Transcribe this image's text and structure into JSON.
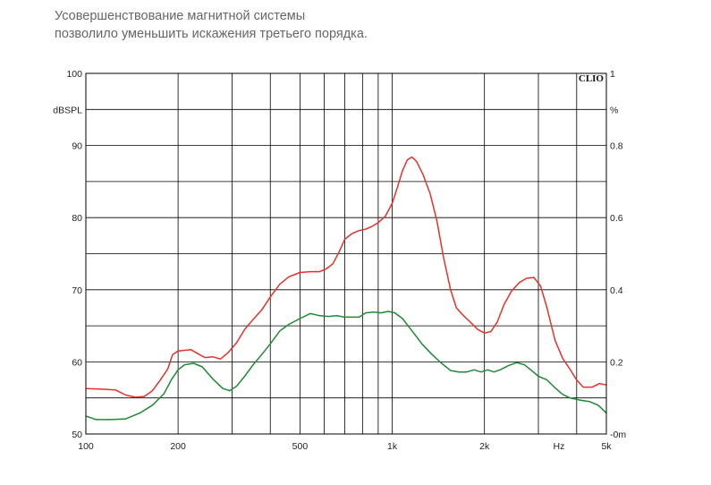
{
  "caption": {
    "line1": "Усовершенствование магнитной системы",
    "line2": "позволило уменьшить искажения третьего порядка."
  },
  "chart_data": {
    "type": "line",
    "brand": "CLIO",
    "x_scale": "log",
    "xlim": [
      100,
      5000
    ],
    "x_tick_labels": [
      {
        "value": 100,
        "label": "100"
      },
      {
        "value": 200,
        "label": "200"
      },
      {
        "value": 500,
        "label": "500"
      },
      {
        "value": 1000,
        "label": "1k"
      },
      {
        "value": 2000,
        "label": "2k"
      },
      {
        "value": 3500,
        "label": "Hz"
      },
      {
        "value": 5000,
        "label": "5k"
      }
    ],
    "x_gridlines": [
      200,
      300,
      400,
      500,
      600,
      700,
      800,
      900,
      1000,
      2000,
      3000,
      4000
    ],
    "y_left": {
      "unit_label": "dBSPL",
      "unit_at": 95,
      "ylim": [
        50,
        100
      ],
      "tick_labels": [
        {
          "value": 100,
          "label": "100"
        },
        {
          "value": 90,
          "label": "90"
        },
        {
          "value": 80,
          "label": "80"
        },
        {
          "value": 70,
          "label": "70"
        },
        {
          "value": 60,
          "label": "60"
        },
        {
          "value": 50,
          "label": "50"
        }
      ]
    },
    "y_right": {
      "unit_label": "%",
      "unit_at": 95,
      "tick_labels": [
        {
          "value": 100,
          "label": "1"
        },
        {
          "value": 90,
          "label": "0.8"
        },
        {
          "value": 80,
          "label": "0.6"
        },
        {
          "value": 70,
          "label": "0.4"
        },
        {
          "value": 60,
          "label": "0.2"
        },
        {
          "value": 50,
          "label": "-0m"
        }
      ]
    },
    "y_gridlines": [
      55,
      60,
      65,
      70,
      75,
      80,
      85,
      90,
      95
    ],
    "grid": true,
    "series": [
      {
        "color": "#e8302a",
        "points": [
          [
            100,
            56.3
          ],
          [
            115,
            56.2
          ],
          [
            125,
            56.1
          ],
          [
            135,
            55.4
          ],
          [
            145,
            55.1
          ],
          [
            155,
            55.2
          ],
          [
            165,
            56.0
          ],
          [
            175,
            57.5
          ],
          [
            185,
            59.0
          ],
          [
            192,
            61.0
          ],
          [
            200,
            61.5
          ],
          [
            210,
            61.6
          ],
          [
            220,
            61.7
          ],
          [
            235,
            61.0
          ],
          [
            245,
            60.6
          ],
          [
            260,
            60.7
          ],
          [
            275,
            60.4
          ],
          [
            290,
            61.2
          ],
          [
            310,
            62.6
          ],
          [
            330,
            64.5
          ],
          [
            350,
            65.8
          ],
          [
            375,
            67.2
          ],
          [
            400,
            69.0
          ],
          [
            430,
            70.8
          ],
          [
            460,
            71.8
          ],
          [
            500,
            72.4
          ],
          [
            540,
            72.5
          ],
          [
            580,
            72.5
          ],
          [
            610,
            72.9
          ],
          [
            640,
            73.6
          ],
          [
            670,
            75.2
          ],
          [
            700,
            77.0
          ],
          [
            740,
            77.8
          ],
          [
            780,
            78.2
          ],
          [
            820,
            78.4
          ],
          [
            860,
            78.8
          ],
          [
            900,
            79.3
          ],
          [
            950,
            80.2
          ],
          [
            1000,
            82.0
          ],
          [
            1040,
            84.2
          ],
          [
            1080,
            86.5
          ],
          [
            1120,
            88.0
          ],
          [
            1160,
            88.4
          ],
          [
            1200,
            87.8
          ],
          [
            1260,
            86.0
          ],
          [
            1330,
            83.3
          ],
          [
            1400,
            79.5
          ],
          [
            1470,
            74.5
          ],
          [
            1550,
            70.0
          ],
          [
            1620,
            67.5
          ],
          [
            1700,
            66.5
          ],
          [
            1800,
            65.5
          ],
          [
            1900,
            64.5
          ],
          [
            2000,
            64.0
          ],
          [
            2100,
            64.2
          ],
          [
            2200,
            65.5
          ],
          [
            2320,
            68.0
          ],
          [
            2450,
            69.8
          ],
          [
            2600,
            71.0
          ],
          [
            2750,
            71.6
          ],
          [
            2900,
            71.7
          ],
          [
            3050,
            70.5
          ],
          [
            3200,
            67.5
          ],
          [
            3400,
            63.0
          ],
          [
            3600,
            60.5
          ],
          [
            3800,
            59.0
          ],
          [
            4000,
            57.5
          ],
          [
            4200,
            56.5
          ],
          [
            4500,
            56.5
          ],
          [
            4750,
            57.0
          ],
          [
            5000,
            56.8
          ]
        ]
      },
      {
        "color": "#1e8a37",
        "points": [
          [
            100,
            52.5
          ],
          [
            108,
            52.0
          ],
          [
            120,
            52.0
          ],
          [
            135,
            52.1
          ],
          [
            150,
            52.9
          ],
          [
            165,
            54.0
          ],
          [
            180,
            55.6
          ],
          [
            190,
            57.5
          ],
          [
            200,
            58.9
          ],
          [
            210,
            59.6
          ],
          [
            225,
            59.8
          ],
          [
            240,
            59.3
          ],
          [
            260,
            57.6
          ],
          [
            280,
            56.3
          ],
          [
            295,
            56.0
          ],
          [
            310,
            56.6
          ],
          [
            330,
            58.0
          ],
          [
            350,
            59.5
          ],
          [
            375,
            61.0
          ],
          [
            400,
            62.5
          ],
          [
            430,
            64.3
          ],
          [
            460,
            65.2
          ],
          [
            500,
            66.0
          ],
          [
            540,
            66.7
          ],
          [
            580,
            66.4
          ],
          [
            620,
            66.3
          ],
          [
            660,
            66.4
          ],
          [
            700,
            66.2
          ],
          [
            740,
            66.2
          ],
          [
            780,
            66.2
          ],
          [
            820,
            66.8
          ],
          [
            870,
            66.9
          ],
          [
            920,
            66.8
          ],
          [
            970,
            67.0
          ],
          [
            1020,
            66.8
          ],
          [
            1080,
            66.0
          ],
          [
            1150,
            64.5
          ],
          [
            1250,
            62.5
          ],
          [
            1350,
            61.0
          ],
          [
            1450,
            59.8
          ],
          [
            1550,
            58.8
          ],
          [
            1650,
            58.6
          ],
          [
            1750,
            58.6
          ],
          [
            1850,
            58.9
          ],
          [
            1950,
            58.6
          ],
          [
            2050,
            58.9
          ],
          [
            2150,
            58.6
          ],
          [
            2250,
            58.9
          ],
          [
            2400,
            59.5
          ],
          [
            2550,
            59.9
          ],
          [
            2700,
            59.6
          ],
          [
            2850,
            58.8
          ],
          [
            3000,
            58.0
          ],
          [
            3200,
            57.5
          ],
          [
            3400,
            56.4
          ],
          [
            3600,
            55.5
          ],
          [
            3800,
            55.0
          ],
          [
            4100,
            54.7
          ],
          [
            4400,
            54.5
          ],
          [
            4700,
            54.0
          ],
          [
            5000,
            52.9
          ]
        ]
      }
    ]
  }
}
